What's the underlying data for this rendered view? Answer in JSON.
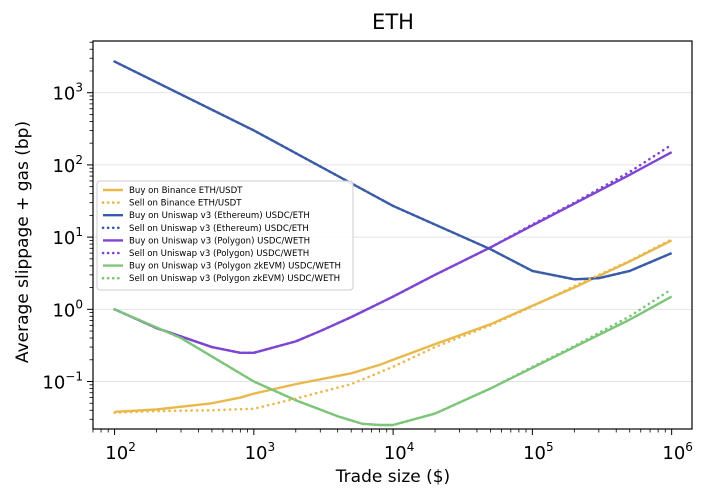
{
  "chart_data": {
    "type": "line",
    "title": "ETH",
    "xlabel": "Trade size ($)",
    "ylabel": "Average slippage + gas (bp)",
    "x_scale": "log",
    "y_scale": "log",
    "xlim": [
      70,
      1400000
    ],
    "ylim": [
      0.022,
      5200
    ],
    "grid": {
      "x": false,
      "y": true
    },
    "legend_position": "center-left",
    "x_ticks": [
      {
        "value": 100,
        "base": "10",
        "exp": "2"
      },
      {
        "value": 1000,
        "base": "10",
        "exp": "3"
      },
      {
        "value": 10000,
        "base": "10",
        "exp": "4"
      },
      {
        "value": 100000,
        "base": "10",
        "exp": "5"
      },
      {
        "value": 1000000,
        "base": "10",
        "exp": "6"
      }
    ],
    "y_ticks": [
      {
        "value": 0.1,
        "base": "10",
        "exp": "−1"
      },
      {
        "value": 1,
        "base": "10",
        "exp": "0"
      },
      {
        "value": 10,
        "base": "10",
        "exp": "1"
      },
      {
        "value": 100,
        "base": "10",
        "exp": "2"
      },
      {
        "value": 1000,
        "base": "10",
        "exp": "3"
      }
    ],
    "series": [
      {
        "name": "Buy on Binance ETH/USDT",
        "color": "#e8b84b",
        "style": "solid",
        "points": [
          [
            100,
            0.038
          ],
          [
            200,
            0.041
          ],
          [
            500,
            0.05
          ],
          [
            800,
            0.06
          ],
          [
            1000,
            0.068
          ],
          [
            2000,
            0.092
          ],
          [
            5000,
            0.13
          ],
          [
            8000,
            0.17
          ],
          [
            10000,
            0.2
          ],
          [
            20000,
            0.33
          ],
          [
            50000,
            0.62
          ],
          [
            100000,
            1.12
          ],
          [
            200000,
            2.0
          ],
          [
            500000,
            4.6
          ],
          [
            1000000,
            9.0
          ]
        ]
      },
      {
        "name": "Sell on Binance ETH/USDT",
        "color": "#e8b84b",
        "style": "dotted",
        "points": [
          [
            100,
            0.037
          ],
          [
            200,
            0.039
          ],
          [
            500,
            0.04
          ],
          [
            1000,
            0.042
          ],
          [
            2000,
            0.058
          ],
          [
            5000,
            0.092
          ],
          [
            10000,
            0.16
          ],
          [
            20000,
            0.3
          ],
          [
            50000,
            0.6
          ],
          [
            100000,
            1.1
          ],
          [
            200000,
            2.1
          ],
          [
            500000,
            4.7
          ],
          [
            1000000,
            9.3
          ]
        ]
      },
      {
        "name": "Buy on Uniswap v3 (Ethereum) USDC/ETH",
        "color": "#3a5ba8",
        "style": "solid",
        "points": [
          [
            100,
            2700
          ],
          [
            1000,
            300
          ],
          [
            10000,
            27
          ],
          [
            50000,
            6.8
          ],
          [
            100000,
            3.4
          ],
          [
            200000,
            2.6
          ],
          [
            300000,
            2.7
          ],
          [
            500000,
            3.4
          ],
          [
            1000000,
            6.0
          ]
        ]
      },
      {
        "name": "Sell on Uniswap v3 (Ethereum) USDC/ETH",
        "color": "#3a5ba8",
        "style": "dotted",
        "points": [
          [
            100,
            2700
          ],
          [
            1000,
            300
          ],
          [
            10000,
            27
          ],
          [
            50000,
            6.8
          ],
          [
            100000,
            3.4
          ],
          [
            200000,
            2.6
          ],
          [
            300000,
            2.7
          ],
          [
            500000,
            3.4
          ],
          [
            1000000,
            6.0
          ]
        ]
      },
      {
        "name": "Buy on Uniswap v3 (Polygon) USDC/WETH",
        "color": "#7e45d3",
        "style": "solid",
        "points": [
          [
            100,
            1.0
          ],
          [
            200,
            0.55
          ],
          [
            500,
            0.3
          ],
          [
            800,
            0.25
          ],
          [
            1000,
            0.25
          ],
          [
            2000,
            0.36
          ],
          [
            3000,
            0.5
          ],
          [
            5000,
            0.78
          ],
          [
            10000,
            1.5
          ],
          [
            20000,
            3.0
          ],
          [
            50000,
            7.2
          ],
          [
            100000,
            14.5
          ],
          [
            200000,
            29
          ],
          [
            500000,
            73
          ],
          [
            1000000,
            150
          ]
        ]
      },
      {
        "name": "Sell on Uniswap v3 (Polygon) USDC/WETH",
        "color": "#7e45d3",
        "style": "dotted",
        "points": [
          [
            100,
            1.0
          ],
          [
            200,
            0.55
          ],
          [
            500,
            0.3
          ],
          [
            800,
            0.25
          ],
          [
            1000,
            0.25
          ],
          [
            2000,
            0.36
          ],
          [
            3000,
            0.5
          ],
          [
            5000,
            0.78
          ],
          [
            10000,
            1.5
          ],
          [
            20000,
            3.0
          ],
          [
            50000,
            7.2
          ],
          [
            100000,
            15
          ],
          [
            200000,
            30
          ],
          [
            500000,
            80
          ],
          [
            1000000,
            190
          ]
        ]
      },
      {
        "name": "Buy on Uniswap v3 (Polygon zkEVM) USDC/WETH",
        "color": "#7dc679",
        "style": "solid",
        "points": [
          [
            100,
            1.0
          ],
          [
            300,
            0.4
          ],
          [
            1000,
            0.1
          ],
          [
            2000,
            0.055
          ],
          [
            4000,
            0.033
          ],
          [
            6000,
            0.026
          ],
          [
            8000,
            0.025
          ],
          [
            10000,
            0.025
          ],
          [
            20000,
            0.036
          ],
          [
            50000,
            0.08
          ],
          [
            100000,
            0.155
          ],
          [
            200000,
            0.3
          ],
          [
            500000,
            0.72
          ],
          [
            1000000,
            1.5
          ]
        ]
      },
      {
        "name": "Sell on Uniswap v3 (Polygon zkEVM) USDC/WETH",
        "color": "#7dc679",
        "style": "dotted",
        "points": [
          [
            100,
            1.0
          ],
          [
            300,
            0.4
          ],
          [
            1000,
            0.1
          ],
          [
            2000,
            0.055
          ],
          [
            4000,
            0.033
          ],
          [
            6000,
            0.026
          ],
          [
            8000,
            0.025
          ],
          [
            10000,
            0.025
          ],
          [
            20000,
            0.036
          ],
          [
            50000,
            0.08
          ],
          [
            100000,
            0.16
          ],
          [
            200000,
            0.31
          ],
          [
            500000,
            0.8
          ],
          [
            1000000,
            1.9
          ]
        ]
      }
    ]
  }
}
